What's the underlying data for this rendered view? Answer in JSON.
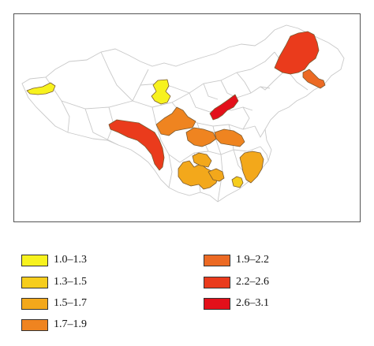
{
  "legend": [
    {
      "label": "1.0–1.3",
      "color": "#f7f21e"
    },
    {
      "label": "1.3–1.5",
      "color": "#f6cd1c"
    },
    {
      "label": "1.5–1.7",
      "color": "#f3a81b"
    },
    {
      "label": "1.7–1.9",
      "color": "#ef8420"
    },
    {
      "label": "1.9–2.2",
      "color": "#ec6a24"
    },
    {
      "label": "2.2–2.6",
      "color": "#ea3b1c"
    },
    {
      "label": "2.6–3.1",
      "color": "#e3101a"
    }
  ],
  "colors": {
    "outline": "#c9c9c9",
    "frame": "#555555",
    "region_stroke": "#7a5a30"
  }
}
